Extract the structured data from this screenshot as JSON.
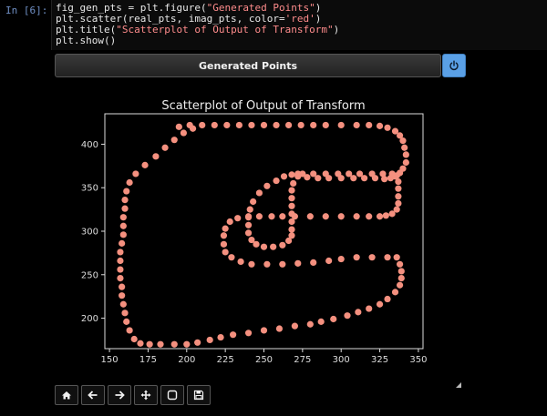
{
  "cell": {
    "prompt": "In [6]:",
    "code_lines": [
      {
        "pre": "fig_gen_pts = plt.figure(",
        "str": "\"Generated Points\"",
        "post": ")"
      },
      {
        "pre": "plt.scatter(real_pts, imag_pts, color=",
        "str": "'red'",
        "post": ")"
      },
      {
        "pre": "plt.title(",
        "str": "\"Scatterplot of Output of Transform\"",
        "post": ")"
      },
      {
        "pre": "plt.show()",
        "str": "",
        "post": ""
      }
    ]
  },
  "figure": {
    "header_title": "Generated Points",
    "power_icon": "power-icon",
    "colors": {
      "points": "#f4907f",
      "axes": "#dddddd",
      "background": "#000000"
    }
  },
  "toolbar": {
    "buttons": [
      "home-icon",
      "back-arrow-icon",
      "forward-arrow-icon",
      "pan-move-icon",
      "zoom-rect-icon",
      "save-icon"
    ]
  },
  "chart_data": {
    "type": "scatter",
    "title": "Scatterplot of Output of Transform",
    "xlabel": "",
    "ylabel": "",
    "xlim": [
      147,
      353
    ],
    "ylim": [
      165,
      435
    ],
    "xticks": [
      150,
      175,
      200,
      225,
      250,
      275,
      300,
      325,
      350
    ],
    "yticks": [
      200,
      250,
      300,
      350,
      400
    ],
    "grid": false,
    "series": [
      {
        "color": "red",
        "x": [
          195,
          202,
          210,
          218,
          226,
          234,
          242,
          250,
          258,
          266,
          274,
          282,
          290,
          300,
          310,
          318,
          325,
          330,
          335,
          338,
          340,
          341,
          342,
          342,
          340,
          338,
          335,
          332,
          328,
          322,
          315,
          308,
          300,
          292,
          285,
          278,
          272,
          269,
          268,
          268,
          268,
          268,
          268,
          268,
          268,
          266,
          262,
          256,
          250,
          245,
          242,
          240,
          240,
          240,
          241,
          243,
          247,
          252,
          258,
          263,
          268,
          272,
          275,
          282,
          290,
          298,
          305,
          312,
          320,
          327,
          333,
          336,
          337,
          337,
          337,
          337,
          336,
          333,
          329,
          325,
          318,
          310,
          300,
          290,
          280,
          270,
          262,
          255,
          247,
          240,
          233,
          228,
          225,
          224,
          224,
          225,
          229,
          235,
          242,
          252,
          262,
          272,
          282,
          292,
          300,
          310,
          320,
          330,
          336,
          338,
          339,
          339,
          338,
          335,
          330,
          325,
          318,
          311,
          304,
          295,
          287,
          280,
          270,
          260,
          250,
          240,
          230,
          222,
          215,
          207,
          200,
          192,
          183,
          176,
          170,
          166,
          163,
          161,
          160,
          159,
          158,
          158,
          157,
          157,
          157,
          157,
          158,
          159,
          159,
          159,
          160,
          160,
          161,
          163,
          167,
          173,
          180,
          186,
          192,
          198,
          204
        ],
        "y": [
          420,
          422,
          422,
          422,
          422,
          422,
          422,
          422,
          422,
          422,
          422,
          422,
          422,
          422,
          422,
          422,
          421,
          419,
          415,
          410,
          404,
          396,
          388,
          379,
          372,
          367,
          363,
          361,
          360,
          361,
          361,
          361,
          361,
          361,
          361,
          362,
          363,
          355,
          347,
          338,
          329,
          320,
          311,
          302,
          295,
          289,
          284,
          282,
          282,
          285,
          290,
          298,
          307,
          316,
          325,
          334,
          344,
          352,
          358,
          363,
          365,
          366,
          366,
          366,
          366,
          366,
          366,
          366,
          366,
          366,
          366,
          364,
          357,
          349,
          340,
          332,
          325,
          320,
          318,
          317,
          317,
          317,
          317,
          317,
          317,
          317,
          317,
          317,
          317,
          317,
          315,
          311,
          303,
          295,
          285,
          276,
          270,
          265,
          262,
          262,
          262,
          263,
          264,
          266,
          268,
          270,
          270,
          270,
          270,
          262,
          254,
          246,
          238,
          230,
          222,
          216,
          211,
          207,
          203,
          199,
          196,
          193,
          191,
          188,
          186,
          183,
          181,
          178,
          175,
          172,
          170,
          170,
          170,
          170,
          171,
          176,
          186,
          196,
          206,
          216,
          226,
          236,
          246,
          256,
          266,
          276,
          286,
          296,
          306,
          316,
          326,
          336,
          346,
          356,
          366,
          376,
          386,
          396,
          405,
          413,
          418
        ]
      }
    ]
  }
}
